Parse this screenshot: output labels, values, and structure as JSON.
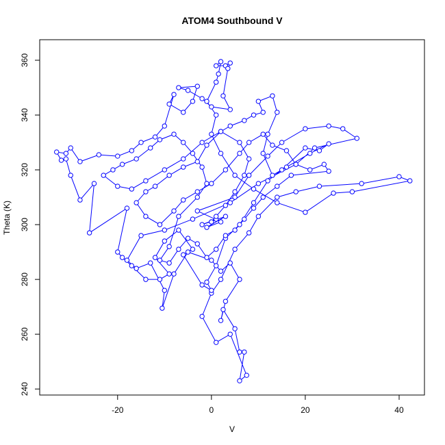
{
  "chart_data": {
    "type": "scatter-line",
    "title": "ATOM4 Southbound V",
    "x_label": "V",
    "y_label": "Theta (K)",
    "color": "#0000ff",
    "x": [
      0,
      1,
      -2,
      3,
      -1,
      2,
      -3,
      5,
      8,
      12,
      15,
      20,
      25,
      28,
      31,
      22,
      18,
      10,
      4,
      -4,
      -10,
      -15,
      -18,
      -16,
      -13,
      -10,
      -10.5,
      -8,
      -5,
      0,
      2,
      4,
      6,
      3,
      2,
      2.5,
      5,
      6,
      7,
      6,
      7.5,
      4,
      1,
      -2,
      0,
      2,
      5,
      8,
      10,
      14,
      18,
      23,
      32,
      40,
      42.3,
      30,
      26,
      20,
      14,
      9,
      5,
      2,
      0,
      1,
      -1,
      1,
      1.5,
      2,
      1,
      3,
      4,
      3.5,
      2.5,
      4,
      0,
      -2,
      -5,
      -7,
      -3,
      -4,
      -6,
      -9,
      -8,
      -10,
      -12,
      -15,
      -17,
      -20,
      -24,
      -28,
      -30,
      -31,
      -33,
      -32,
      -31,
      -30,
      -28,
      -25,
      -26,
      -18,
      -20,
      -19,
      -17,
      -14,
      -11,
      -9,
      -12,
      -10,
      -7,
      -4,
      -6,
      -2,
      0,
      -1,
      1,
      3,
      6,
      9,
      12,
      15,
      20,
      23,
      25,
      21,
      16,
      13,
      11,
      12,
      14,
      13,
      10,
      11,
      9,
      7,
      4,
      2,
      -1,
      -3,
      -6,
      -9,
      -12,
      -14,
      -16,
      -14,
      -11,
      -8,
      -6,
      -3,
      0,
      3,
      6,
      8,
      11,
      13,
      16,
      18,
      21,
      24,
      25,
      17,
      14,
      11,
      9,
      7,
      5,
      3,
      1,
      -1,
      -3,
      -5,
      -7,
      -9,
      -11,
      -9,
      -7,
      -3,
      -1,
      -2,
      -4,
      -6,
      -8,
      -11,
      -13,
      -16,
      -19,
      -21,
      -23,
      -20,
      -17,
      -14,
      -10,
      -6,
      -2,
      2,
      6,
      8,
      7,
      5,
      3,
      1,
      0
    ],
    "y": [
      301,
      302,
      300,
      303,
      299,
      301,
      305,
      310,
      318,
      325,
      330,
      335,
      336,
      335,
      331.5,
      328,
      322,
      315,
      308,
      302,
      298,
      296,
      287,
      284,
      286,
      276,
      269.5,
      282,
      290,
      287,
      283,
      286,
      280,
      272,
      265,
      269,
      262,
      253.5,
      253.5,
      243,
      245,
      260,
      257,
      266.5,
      275,
      280,
      291,
      297,
      303,
      310,
      312,
      314,
      315,
      317.5,
      316,
      312,
      311.5,
      304.5,
      308,
      313,
      318,
      326,
      333,
      340,
      345,
      352,
      355,
      359.5,
      358,
      358,
      359,
      357,
      347,
      342,
      343,
      346,
      349,
      350,
      350.5,
      345,
      341,
      344,
      347.5,
      336,
      332,
      330,
      327,
      325,
      325.5,
      323,
      328,
      326,
      326.5,
      323.5,
      324,
      318,
      309,
      315,
      297,
      306,
      290,
      288,
      285,
      280,
      280,
      282,
      288,
      294,
      298,
      291,
      289,
      278,
      276,
      279,
      285,
      295,
      300,
      308,
      316,
      320,
      328,
      327,
      329.5,
      326,
      321,
      318,
      326,
      333,
      341,
      347,
      345,
      341,
      340,
      338,
      336,
      334,
      329,
      323,
      321,
      318,
      314,
      312,
      308,
      303,
      300,
      305,
      309,
      312,
      315,
      320,
      326,
      330,
      333,
      329,
      327,
      322,
      320,
      322,
      319.5,
      318,
      314,
      310,
      306,
      302,
      298,
      296,
      291,
      288,
      293,
      295,
      291,
      286,
      287,
      292,
      303,
      310,
      315,
      321,
      326,
      330,
      333,
      331,
      328,
      324,
      322,
      320,
      318,
      314,
      313,
      316,
      320,
      324,
      330,
      334,
      330,
      324,
      318,
      312,
      307,
      303,
      301
    ],
    "xlim": [
      -36.6,
      45.4
    ],
    "ylim": [
      237.8,
      367.5
    ],
    "xticks": [
      -20,
      0,
      20,
      40
    ],
    "yticks": [
      240,
      260,
      280,
      300,
      320,
      340,
      360
    ]
  }
}
